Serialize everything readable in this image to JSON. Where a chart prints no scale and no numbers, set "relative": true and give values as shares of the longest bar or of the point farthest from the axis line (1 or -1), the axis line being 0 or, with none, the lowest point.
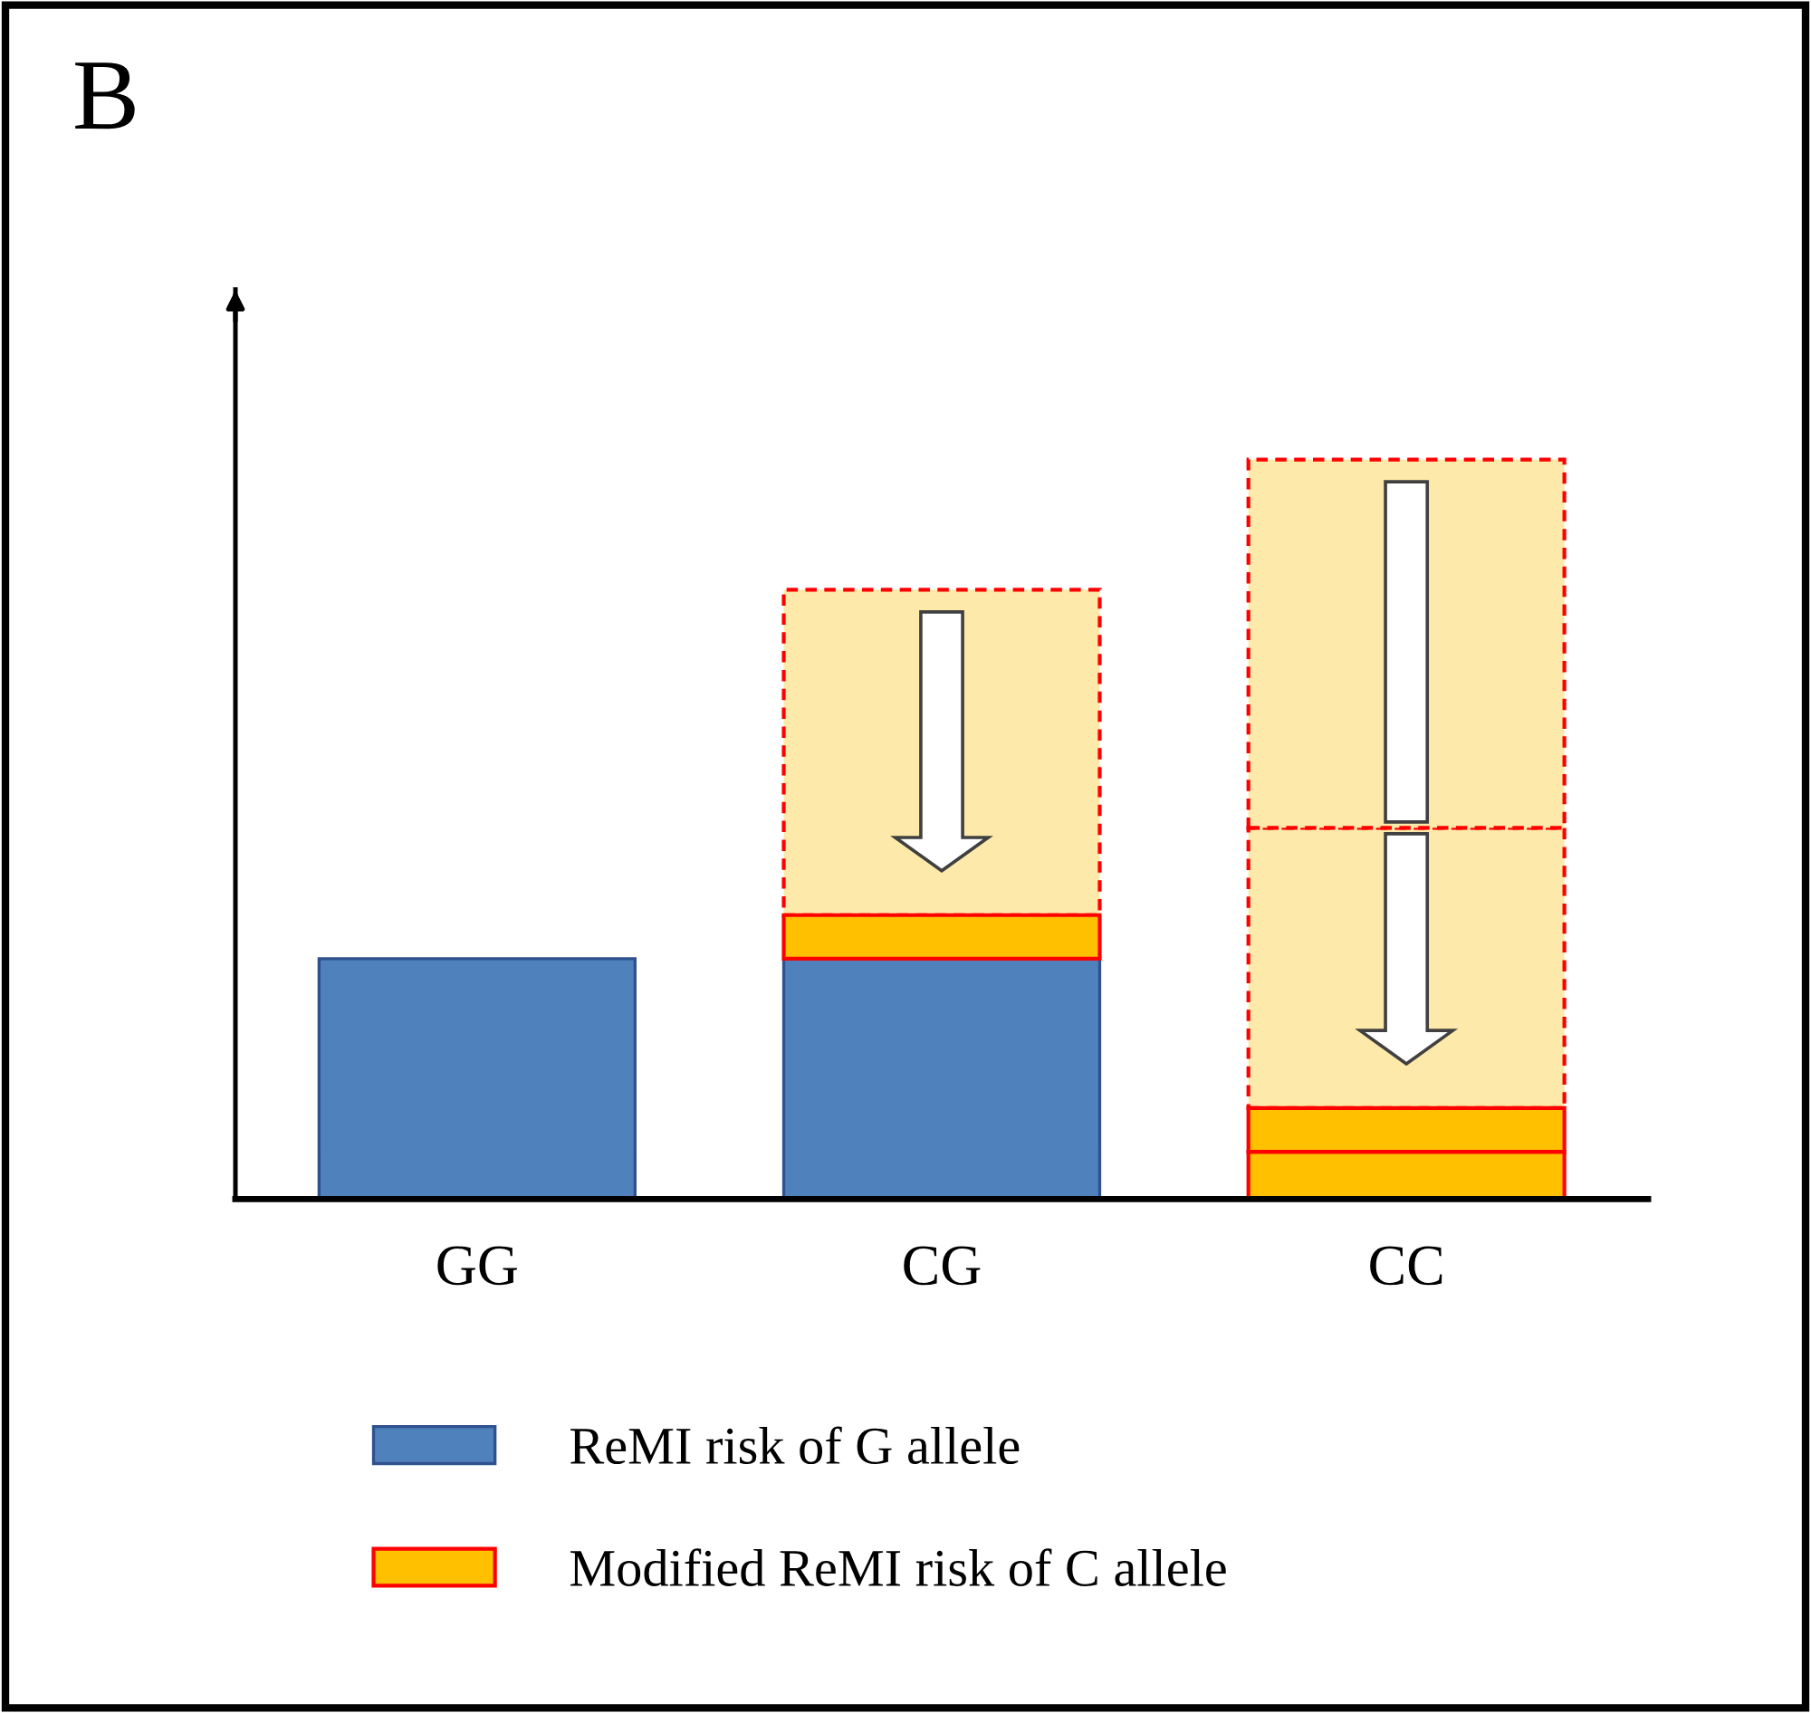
{
  "chart_data": {
    "type": "bar",
    "title": "B",
    "stacked": true,
    "relative": true,
    "legend": "bottom",
    "categories": [
      "GG",
      "CG",
      "CC"
    ],
    "series": [
      {
        "name": "ReMI risk of G allele",
        "color": "#4f81bd",
        "values": [
          0.325,
          0.325,
          null
        ]
      },
      {
        "name": "Modified ReMI risk of C allele",
        "color": "#ffc000",
        "values": [
          null,
          0.059,
          0.064
        ]
      },
      {
        "color": "#ffc000",
        "values": [
          null,
          null,
          0.059
        ]
      },
      {
        "color": "#fde9a9",
        "line_style": "dashed",
        "values": [
          null,
          0.44,
          0.379
        ]
      },
      {
        "color": "#fde9a9",
        "line_style": "dashed",
        "values": [
          null,
          null,
          0.498
        ]
      }
    ]
  }
}
